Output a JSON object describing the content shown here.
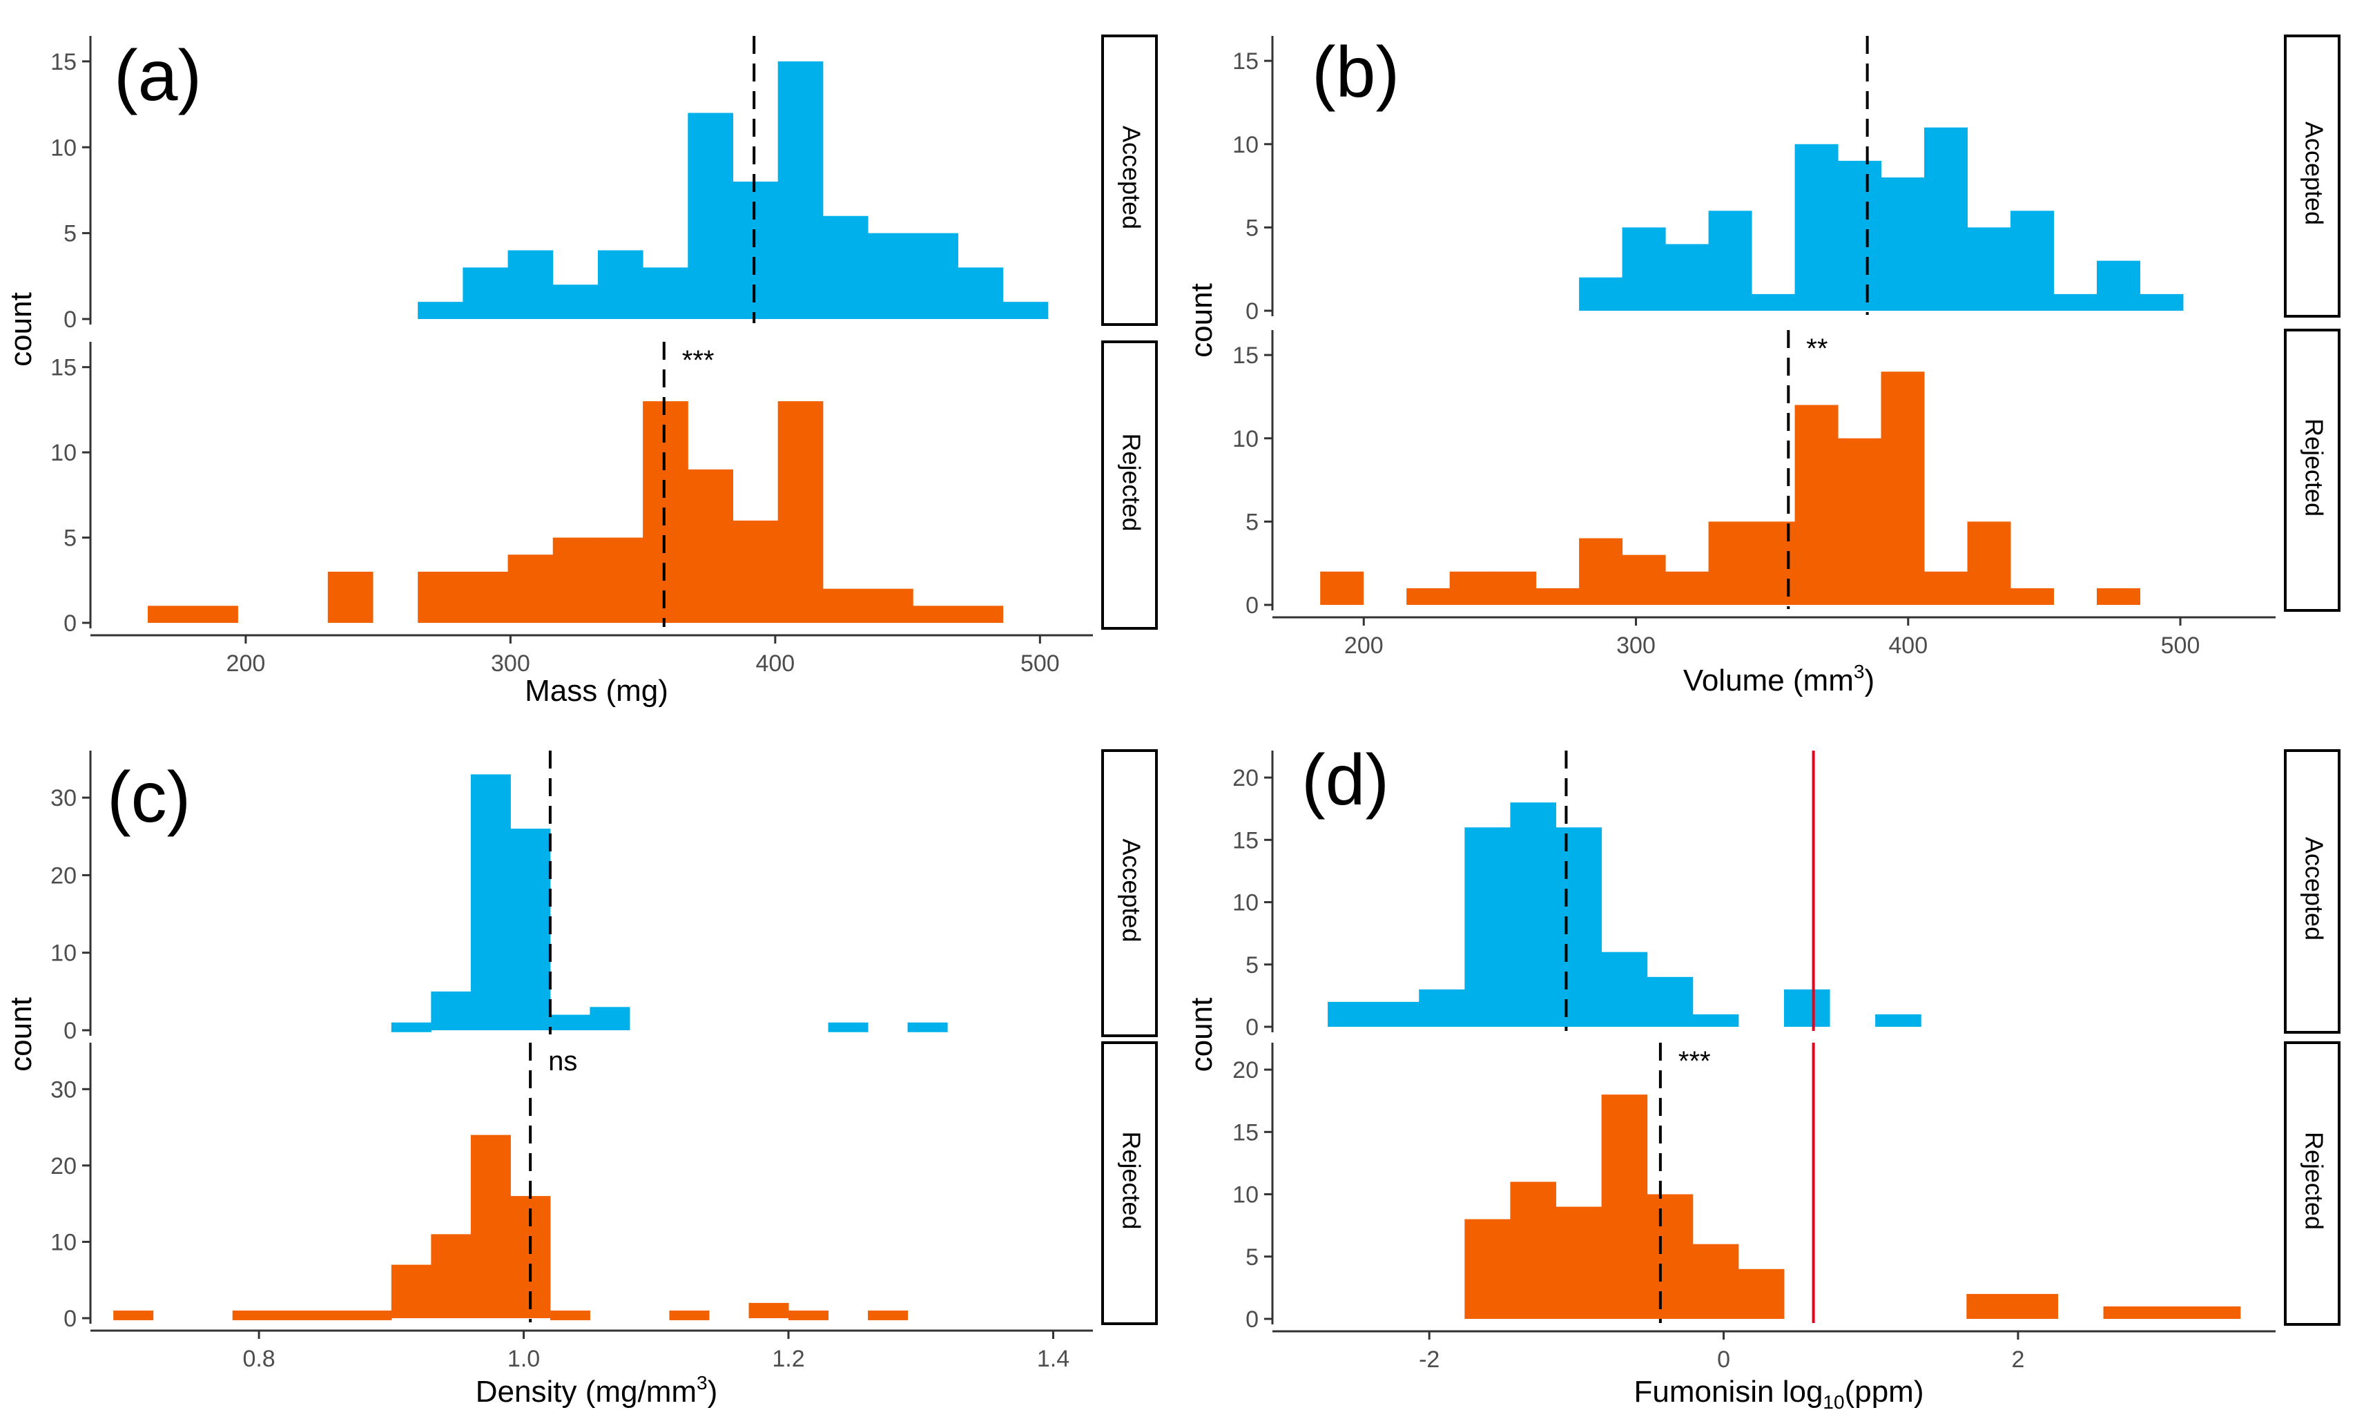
{
  "colors": {
    "accepted": "#00B0EA",
    "rejected": "#F26000",
    "threshold": "#E8001C",
    "axis": "#333333",
    "tick_text": "#4d4d4d"
  },
  "strip_labels": {
    "accepted": "Accepted",
    "rejected": "Rejected"
  },
  "chart_data": [
    {
      "type": "bar",
      "panel_label": "(a)",
      "xlabel": "Mass (mg)",
      "ylabel": "count",
      "xlim": [
        145,
        520
      ],
      "xticks": [
        200,
        300,
        400,
        500
      ],
      "xtick_labels": [
        "200",
        "300",
        "400",
        "500"
      ],
      "ylim": [
        0,
        16
      ],
      "yticks": [
        0,
        5,
        10,
        15
      ],
      "ytick_labels": [
        "0",
        "5",
        "10",
        "15"
      ],
      "bin_start": 163,
      "bin_width": 17,
      "facets": [
        {
          "name": "Accepted",
          "counts": [
            0,
            0,
            0,
            0,
            0,
            0,
            1,
            3,
            4,
            2,
            4,
            3,
            12,
            8,
            15,
            6,
            5,
            5,
            3,
            1
          ],
          "mean": 392,
          "annotation": ""
        },
        {
          "name": "Rejected",
          "counts": [
            1,
            1,
            0,
            0,
            3,
            0,
            3,
            3,
            4,
            5,
            5,
            13,
            9,
            6,
            13,
            2,
            2,
            1,
            1,
            0
          ],
          "mean": 358,
          "annotation": "***"
        }
      ]
    },
    {
      "type": "bar",
      "panel_label": "(b)",
      "xlabel": "Volume (mm",
      "xlabel_sup": "3",
      "xlabel_end": ")",
      "ylabel": "count",
      "xlim": [
        170,
        535
      ],
      "xticks": [
        200,
        300,
        400,
        500
      ],
      "xtick_labels": [
        "200",
        "300",
        "400",
        "500"
      ],
      "ylim": [
        0,
        16
      ],
      "yticks": [
        0,
        5,
        10,
        15
      ],
      "ytick_labels": [
        "0",
        "5",
        "10",
        "15"
      ],
      "bin_start": 184,
      "bin_width": 15.85,
      "facets": [
        {
          "name": "Accepted",
          "counts": [
            0,
            0,
            0,
            0,
            0,
            0,
            2,
            5,
            4,
            6,
            1,
            10,
            9,
            8,
            11,
            5,
            6,
            1,
            3,
            1
          ],
          "mean": 385,
          "annotation": ""
        },
        {
          "name": "Rejected",
          "counts": [
            2,
            0,
            1,
            2,
            2,
            1,
            4,
            3,
            2,
            5,
            5,
            12,
            10,
            14,
            2,
            5,
            1,
            0,
            1,
            0
          ],
          "mean": 356,
          "annotation": "**"
        }
      ]
    },
    {
      "type": "bar",
      "panel_label": "(c)",
      "xlabel": "Density (mg/mm",
      "xlabel_sup": "3",
      "xlabel_end": ")",
      "ylabel": "count",
      "xlim": [
        0.68,
        1.43
      ],
      "xticks": [
        0.8,
        1.0,
        1.2,
        1.4
      ],
      "xtick_labels": [
        "0.8",
        "1.0",
        "1.2",
        "1.4"
      ],
      "ylim": [
        0,
        35
      ],
      "yticks": [
        0,
        10,
        20,
        30
      ],
      "ytick_labels": [
        "0",
        "10",
        "20",
        "30"
      ],
      "bin_start": 0.69,
      "bin_width": 0.03,
      "facets": [
        {
          "name": "Accepted",
          "counts": [
            0,
            0,
            0,
            0,
            0,
            0,
            0,
            1,
            5,
            33,
            26,
            2,
            3,
            0,
            0,
            0,
            0,
            0,
            1,
            0,
            1,
            0,
            0,
            0
          ],
          "mean": 1.02,
          "annotation": ""
        },
        {
          "name": "Rejected",
          "counts": [
            1,
            0,
            0,
            1,
            1,
            1,
            1,
            7,
            11,
            24,
            16,
            1,
            0,
            0,
            1,
            0,
            2,
            1,
            0,
            1,
            0,
            0,
            0,
            0
          ],
          "mean": 1.005,
          "annotation": "ns"
        }
      ]
    },
    {
      "type": "bar",
      "panel_label": "(d)",
      "xlabel": "Fumonisin log",
      "xlabel_sub": "10",
      "xlabel_end": "(ppm)",
      "ylabel": "count",
      "xlim": [
        -3.0,
        3.75
      ],
      "xticks": [
        -2,
        0,
        2
      ],
      "xtick_labels": [
        "-2",
        "0",
        "2"
      ],
      "ylim": [
        0,
        21.5
      ],
      "yticks": [
        0,
        5,
        10,
        15,
        20
      ],
      "ytick_labels": [
        "0",
        "5",
        "10",
        "15",
        "20"
      ],
      "bin_start": -2.69,
      "bin_width": 0.31,
      "threshold": 0.61,
      "facets": [
        {
          "name": "Accepted",
          "counts": [
            2,
            2,
            3,
            16,
            18,
            16,
            6,
            4,
            1,
            0,
            3,
            0,
            1,
            0,
            0,
            0,
            0,
            0,
            0,
            0
          ],
          "mean": -1.07,
          "annotation": ""
        },
        {
          "name": "Rejected",
          "counts": [
            0,
            0,
            0,
            8,
            11,
            9,
            18,
            10,
            6,
            4,
            0,
            0,
            0,
            0,
            2,
            2,
            0,
            1,
            1,
            1
          ],
          "mean": -0.43,
          "annotation": "***"
        }
      ]
    }
  ]
}
